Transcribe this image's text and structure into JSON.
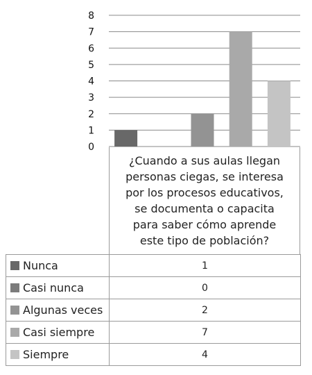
{
  "chart_data": {
    "type": "bar",
    "categories": [
      "¿Cuando a sus aulas llegan personas ciegas, se interesa por los procesos educativos, se documenta o capacita para saber cómo aprende este tipo de población?"
    ],
    "series": [
      {
        "name": "Nunca",
        "values": [
          1
        ],
        "color": "#686868"
      },
      {
        "name": "Casi nunca",
        "values": [
          0
        ],
        "color": "#7c7c7c"
      },
      {
        "name": "Algunas veces",
        "values": [
          2
        ],
        "color": "#939393"
      },
      {
        "name": "Casi siempre",
        "values": [
          7
        ],
        "color": "#a9a9a9"
      },
      {
        "name": "Siempre",
        "values": [
          4
        ],
        "color": "#c4c4c4"
      }
    ],
    "yticks": [
      "0",
      "1",
      "2",
      "3",
      "4",
      "5",
      "6",
      "7",
      "8"
    ],
    "ylim": [
      0,
      8
    ],
    "grid": true,
    "legend": "data-table"
  },
  "table": {
    "rows": [
      {
        "label": "Nunca",
        "value": "1"
      },
      {
        "label": "Casi nunca",
        "value": "0"
      },
      {
        "label": "Algunas veces",
        "value": "2"
      },
      {
        "label": "Casi siempre",
        "value": "7"
      },
      {
        "label": "Siempre",
        "value": "4"
      }
    ]
  }
}
